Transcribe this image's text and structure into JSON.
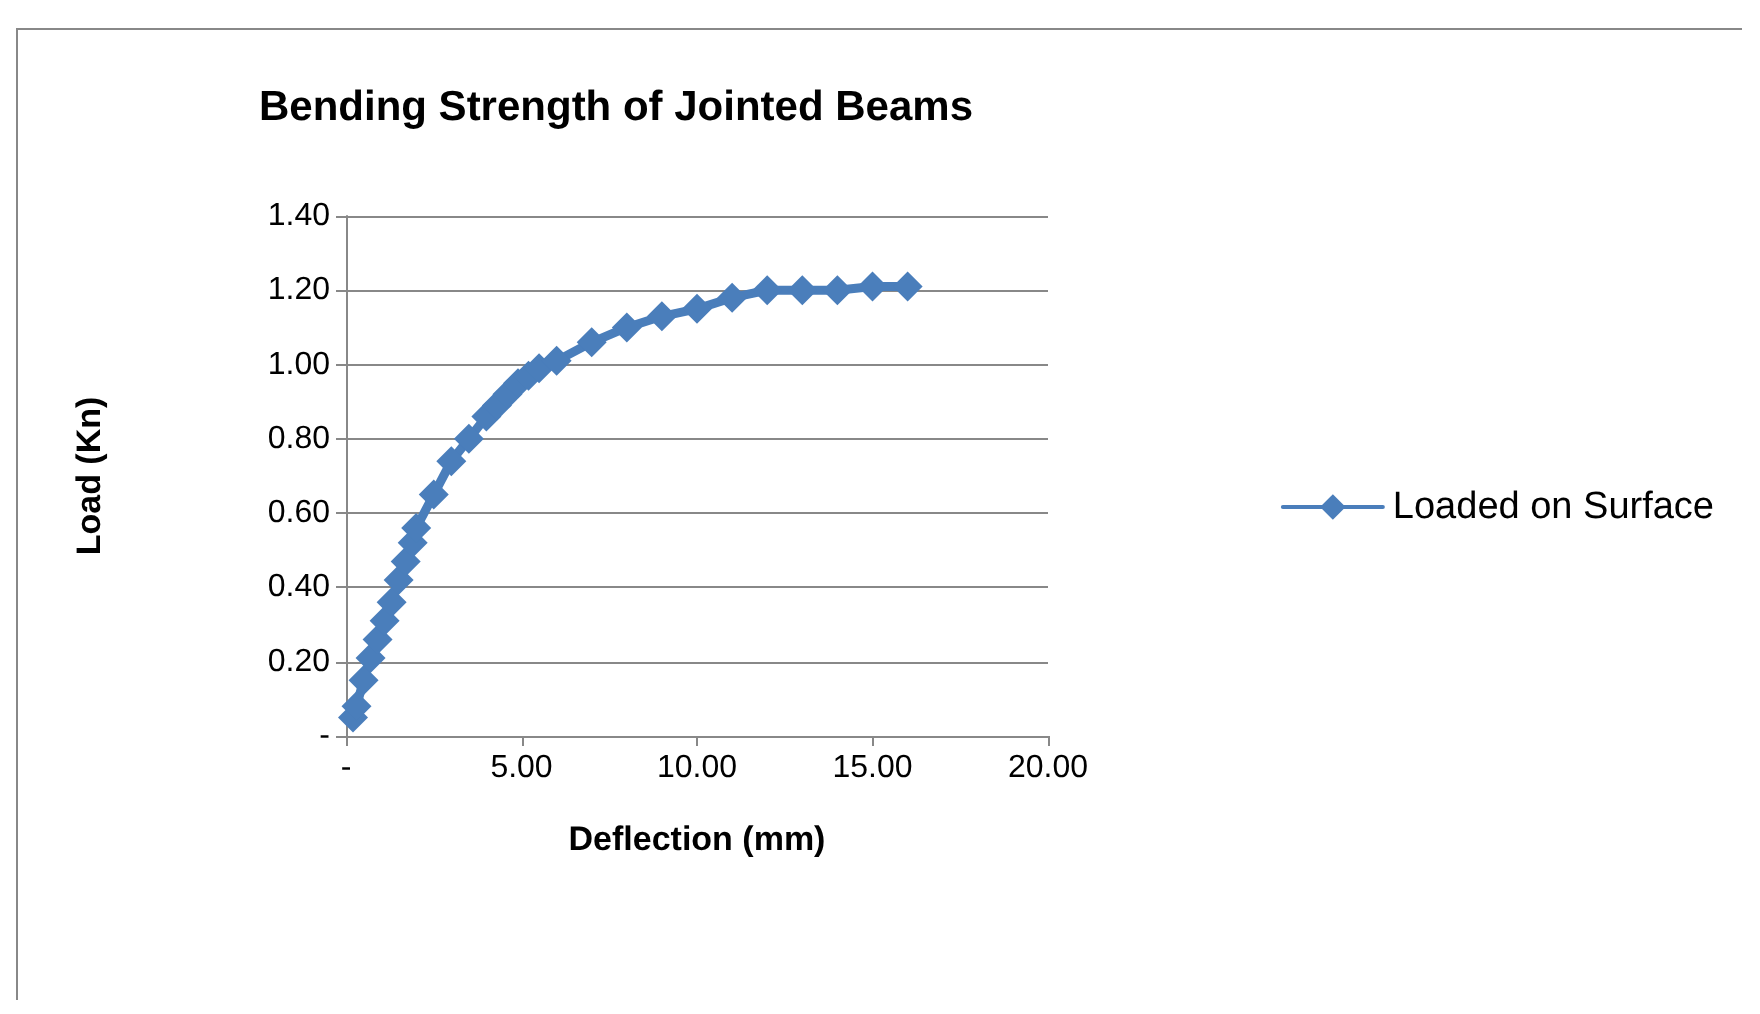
{
  "chart_data": {
    "type": "line",
    "title": "Bending Strength of Jointed Beams",
    "xlabel": "Deflection (mm)",
    "ylabel": "Load (Kn)",
    "series": [
      {
        "name": "Loaded on Surface",
        "color": "#4a7ebb",
        "x": [
          0.2,
          0.3,
          0.5,
          0.7,
          0.9,
          1.1,
          1.3,
          1.5,
          1.7,
          1.9,
          2.0,
          2.5,
          3.0,
          3.5,
          4.0,
          4.3,
          4.6,
          4.9,
          5.2,
          5.5,
          6.0,
          7,
          8,
          9,
          10,
          11,
          12,
          13,
          14,
          15,
          16
        ],
        "values": [
          0.05,
          0.08,
          0.15,
          0.21,
          0.26,
          0.31,
          0.36,
          0.42,
          0.47,
          0.52,
          0.56,
          0.65,
          0.74,
          0.8,
          0.86,
          0.89,
          0.92,
          0.95,
          0.97,
          0.99,
          1.01,
          1.06,
          1.1,
          1.13,
          1.15,
          1.18,
          1.2,
          1.2,
          1.2,
          1.21,
          1.21
        ]
      }
    ],
    "xlim": [
      0,
      20
    ],
    "xticks": [
      {
        "value": 0,
        "label": "-"
      },
      {
        "value": 5,
        "label": "5.00"
      },
      {
        "value": 10,
        "label": "10.00"
      },
      {
        "value": 15,
        "label": "15.00"
      },
      {
        "value": 20,
        "label": "20.00"
      }
    ],
    "ylim": [
      0,
      1.4
    ],
    "yticks": [
      {
        "value": 0,
        "label": "-"
      },
      {
        "value": 0.2,
        "label": "0.20"
      },
      {
        "value": 0.4,
        "label": "0.40"
      },
      {
        "value": 0.6,
        "label": "0.60"
      },
      {
        "value": 0.8,
        "label": "0.80"
      },
      {
        "value": 1.0,
        "label": "1.00"
      },
      {
        "value": 1.2,
        "label": "1.20"
      },
      {
        "value": 1.4,
        "label": "1.40"
      }
    ],
    "grid": "y",
    "legend": "right",
    "marker": "diamond",
    "line_style": "solid"
  }
}
